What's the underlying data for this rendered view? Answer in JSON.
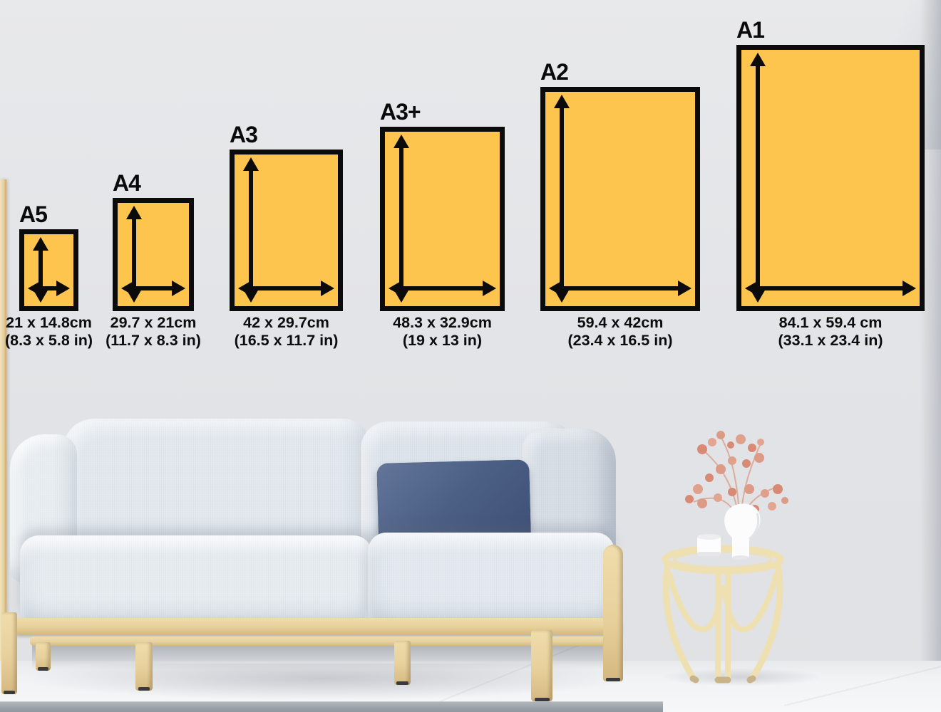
{
  "chart": {
    "title_visible": false,
    "paper_color": "#fdc54d",
    "outline_color": "#0b0b0b",
    "panels": [
      {
        "label": "A5",
        "cm": "21 x 14.8cm",
        "in": "(8.3 x 5.8 in)"
      },
      {
        "label": "A4",
        "cm": "29.7 x 21cm",
        "in": "(11.7 x 8.3 in)"
      },
      {
        "label": "A3",
        "cm": "42 x 29.7cm",
        "in": "(16.5 x 11.7 in)"
      },
      {
        "label": "A3+",
        "cm": "48.3 x 32.9cm",
        "in": "(19 x 13 in)"
      },
      {
        "label": "A2",
        "cm": "59.4 x 42cm",
        "in": "(23.4 x 16.5 in)"
      },
      {
        "label": "A1",
        "cm": "84.1 x 59.4 cm",
        "in": "(33.1 x 23.4 in)"
      }
    ]
  },
  "icons": {
    "height_arrow": "double-headed-vertical-arrow",
    "width_arrow": "double-headed-horizontal-arrow"
  }
}
